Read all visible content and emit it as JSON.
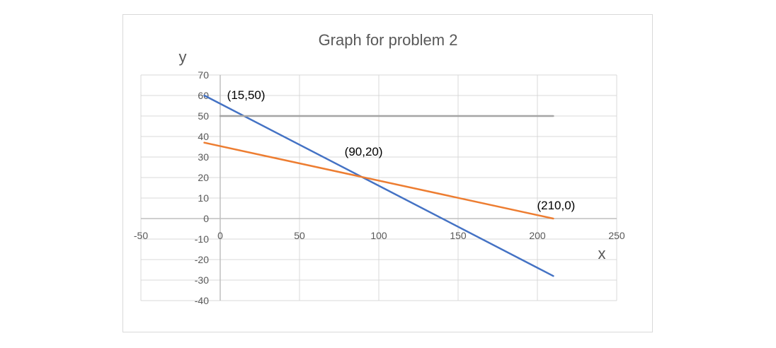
{
  "chart_data": {
    "type": "line",
    "title": "Graph for problem 2",
    "xlabel": "x",
    "ylabel": "y",
    "xlim": [
      -50,
      250
    ],
    "ylim": [
      -40,
      70
    ],
    "x_ticks": [
      -50,
      0,
      50,
      100,
      150,
      200,
      250
    ],
    "y_ticks": [
      -40,
      -30,
      -20,
      -10,
      0,
      10,
      20,
      30,
      40,
      50,
      60,
      70
    ],
    "grid": true,
    "series": [
      {
        "color": "#4472c4",
        "points": [
          [
            -10,
            60
          ],
          [
            210,
            -28
          ]
        ]
      },
      {
        "color": "#ed7d31",
        "points": [
          [
            -10,
            37
          ],
          [
            210,
            0
          ]
        ]
      },
      {
        "color": "#a5a5a5",
        "points": [
          [
            0,
            50
          ],
          [
            210,
            50
          ]
        ]
      }
    ],
    "annotations": [
      {
        "text": "(15,50)",
        "x": 15,
        "y": 50
      },
      {
        "text": "(90,20)",
        "x": 90,
        "y": 20
      },
      {
        "text": "(210,0)",
        "x": 210,
        "y": 0
      }
    ]
  }
}
